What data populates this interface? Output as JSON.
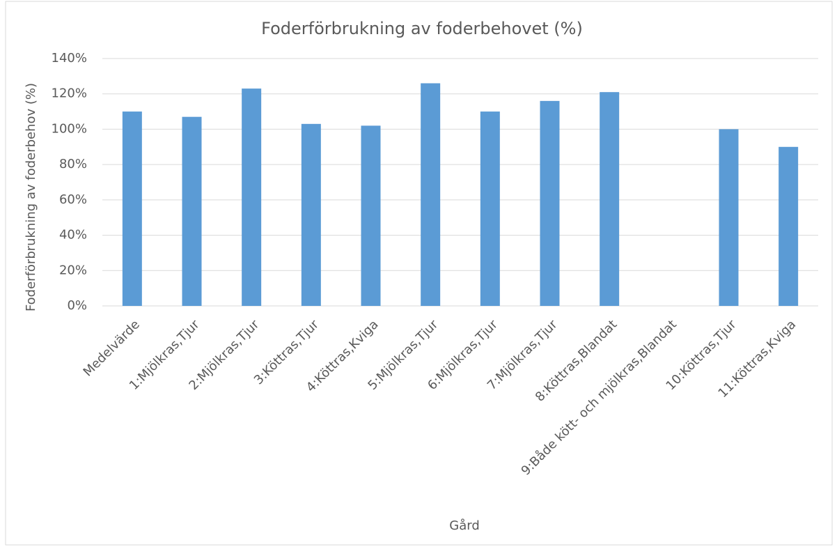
{
  "chart_data": {
    "type": "bar",
    "title": "Foderförbrukning av foderbehovet (%)",
    "x_label": "Gård",
    "y_label": "Foderförbrukning av foderbehov (%)",
    "categories": [
      "Medelvärde",
      "1:Mjölkras,Tjur",
      "2:Mjölkras,Tjur",
      "3:Köttras,Tjur",
      "4:Köttras,Kviga",
      "5:Mjölkras,Tjur",
      "6:Mjölkras,Tjur",
      "7:Mjölkras,Tjur",
      "8:Köttras,Blandat",
      "9:Både kött- och mjölkras,Blandat",
      "10:Köttras,Tjur",
      "11:Köttras,Kviga"
    ],
    "values": [
      110,
      107,
      123,
      103,
      102,
      126,
      110,
      116,
      121,
      null,
      100,
      90
    ],
    "color": "#5b9bd5",
    "ylim": [
      0,
      140
    ],
    "yticks": [
      {
        "value": 0,
        "label": "0%"
      },
      {
        "value": 20,
        "label": "20%"
      },
      {
        "value": 40,
        "label": "40%"
      },
      {
        "value": 60,
        "label": "60%"
      },
      {
        "value": 80,
        "label": "80%"
      },
      {
        "value": 100,
        "label": "100%"
      },
      {
        "value": 120,
        "label": "120%"
      },
      {
        "value": 140,
        "label": "140%"
      }
    ],
    "grid": true
  }
}
